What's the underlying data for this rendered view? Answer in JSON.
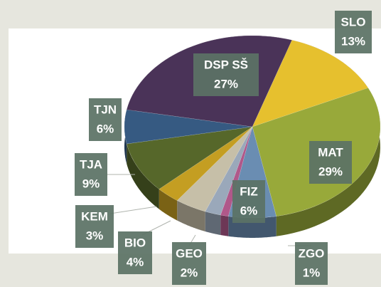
{
  "chart_data": {
    "type": "pie",
    "categories": [
      "SLO",
      "MAT",
      "FIZ",
      "ZGO",
      "GEO",
      "BIO",
      "KEM",
      "TJA",
      "TJN",
      "DSP SŠ"
    ],
    "values": [
      13,
      29,
      6,
      1,
      2,
      4,
      3,
      9,
      6,
      27
    ],
    "value_labels": [
      "13%",
      "29%",
      "6%",
      "1%",
      "2%",
      "4%",
      "3%",
      "9%",
      "6%",
      "27%"
    ],
    "colors": [
      "#e6c02e",
      "#98a93a",
      "#6a8db2",
      "#b0588a",
      "#9aa8ba",
      "#c6bfa8",
      "#c49e22",
      "#56672a",
      "#365a82",
      "#4a3358"
    ]
  }
}
